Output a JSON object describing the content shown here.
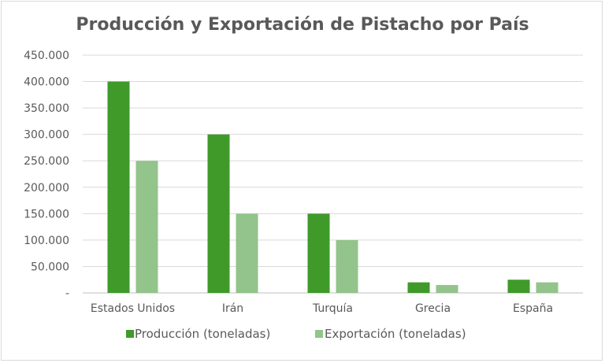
{
  "chart_data": {
    "type": "bar",
    "title": "Producción y Exportación de Pistacho por País",
    "xlabel": "",
    "ylabel": "",
    "categories": [
      "Estados Unidos",
      "Irán",
      "Turquía",
      "Grecia",
      "España"
    ],
    "series": [
      {
        "name": "Producción (toneladas)",
        "color": "#3f9a2a",
        "values": [
          400000,
          300000,
          150000,
          20000,
          25000
        ]
      },
      {
        "name": "Exportación (toneladas)",
        "color": "#93c48b",
        "values": [
          250000,
          150000,
          100000,
          15000,
          20000
        ]
      }
    ],
    "ylim": [
      0,
      450000
    ],
    "y_ticks": [
      0,
      50000,
      100000,
      150000,
      200000,
      250000,
      300000,
      350000,
      400000,
      450000
    ],
    "y_tick_labels": [
      "-",
      "50.000",
      "100.000",
      "150.000",
      "200.000",
      "250.000",
      "300.000",
      "350.000",
      "400.000",
      "450.000"
    ],
    "grid": true,
    "legend_position": "bottom"
  }
}
